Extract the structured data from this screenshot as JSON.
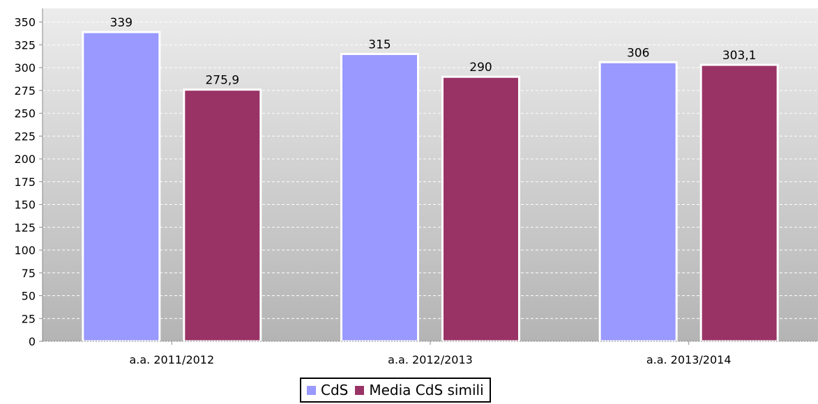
{
  "chart_data": {
    "type": "bar",
    "categories": [
      "a.a. 2011/2012",
      "a.a. 2012/2013",
      "a.a. 2013/2014"
    ],
    "series": [
      {
        "name": "CdS",
        "color": "#9999ff",
        "values": [
          339,
          315,
          306
        ],
        "labels": [
          "339",
          "315",
          "306"
        ]
      },
      {
        "name": "Media CdS simili",
        "color": "#993366",
        "values": [
          275.9,
          290,
          303.1
        ],
        "labels": [
          "275,9",
          "290",
          "303,1"
        ]
      }
    ],
    "ylim": [
      0,
      365
    ],
    "yticks": [
      0,
      25,
      50,
      75,
      100,
      125,
      150,
      175,
      200,
      225,
      250,
      275,
      300,
      325,
      350
    ],
    "title": "",
    "xlabel": "",
    "ylabel": "",
    "grid": true,
    "legend": "bottom-center"
  }
}
